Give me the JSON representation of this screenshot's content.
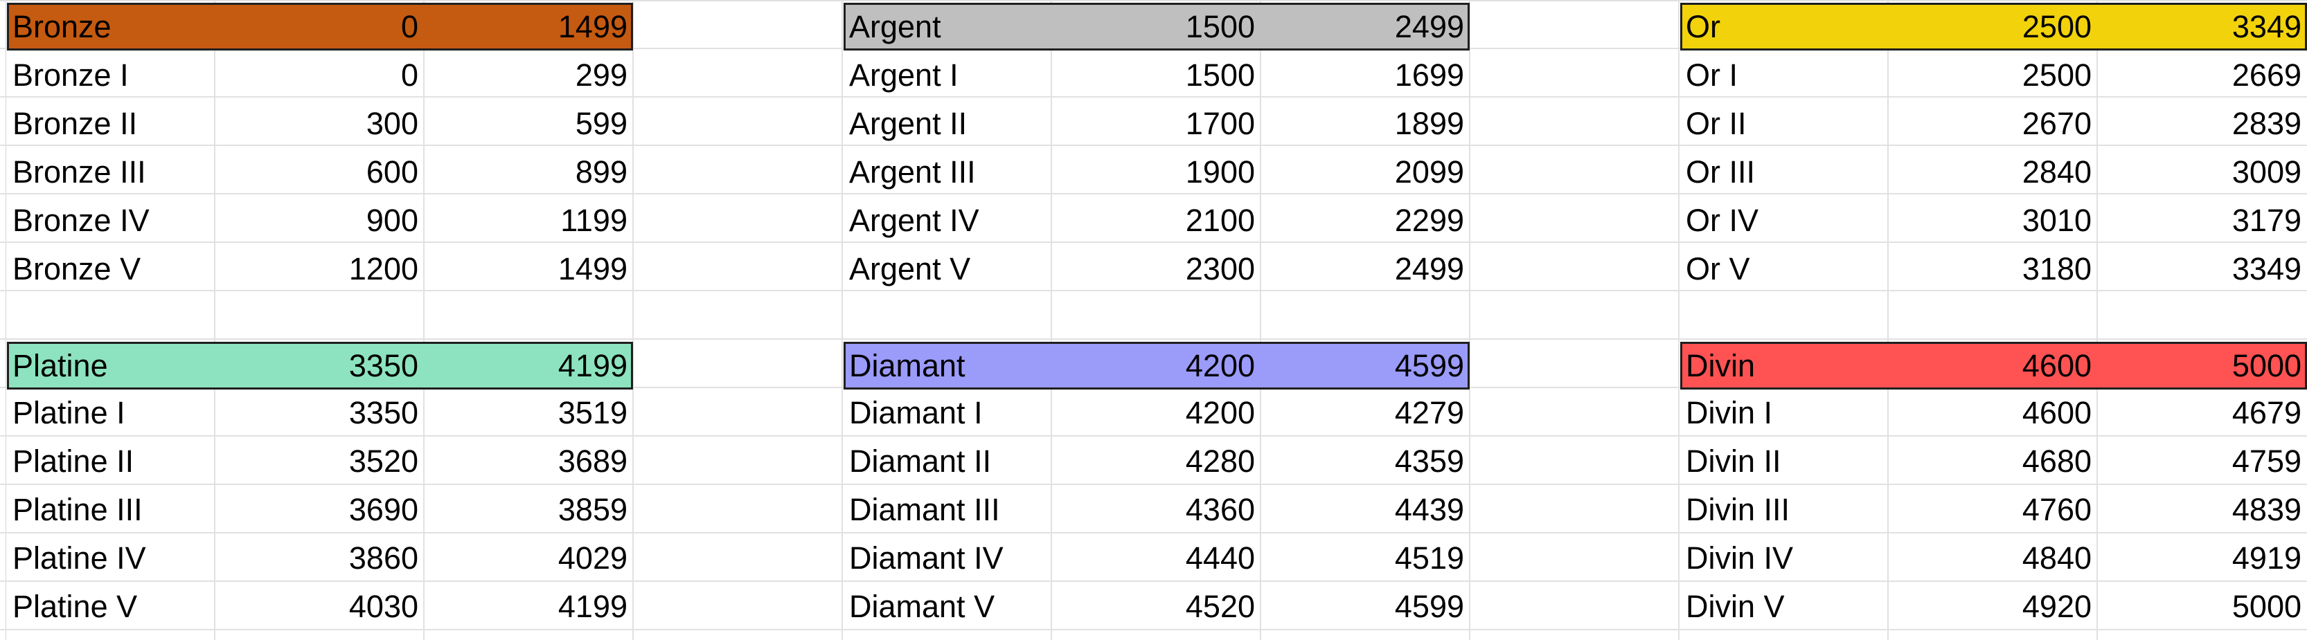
{
  "tiers": [
    {
      "name": "Bronze",
      "min": "0",
      "max": "1499",
      "color": "#c55a11",
      "divisions": [
        {
          "name": "Bronze I",
          "min": "0",
          "max": "299"
        },
        {
          "name": "Bronze II",
          "min": "300",
          "max": "599"
        },
        {
          "name": "Bronze III",
          "min": "600",
          "max": "899"
        },
        {
          "name": "Bronze IV",
          "min": "900",
          "max": "1199"
        },
        {
          "name": "Bronze V",
          "min": "1200",
          "max": "1499"
        }
      ]
    },
    {
      "name": "Argent",
      "min": "1500",
      "max": "2499",
      "color": "#bfbfbf",
      "divisions": [
        {
          "name": "Argent I",
          "min": "1500",
          "max": "1699"
        },
        {
          "name": "Argent II",
          "min": "1700",
          "max": "1899"
        },
        {
          "name": "Argent III",
          "min": "1900",
          "max": "2099"
        },
        {
          "name": "Argent IV",
          "min": "2100",
          "max": "2299"
        },
        {
          "name": "Argent V",
          "min": "2300",
          "max": "2499"
        }
      ]
    },
    {
      "name": "Or",
      "min": "2500",
      "max": "3349",
      "color": "#f2d20a",
      "divisions": [
        {
          "name": "Or I",
          "min": "2500",
          "max": "2669"
        },
        {
          "name": "Or II",
          "min": "2670",
          "max": "2839"
        },
        {
          "name": "Or III",
          "min": "2840",
          "max": "3009"
        },
        {
          "name": "Or IV",
          "min": "3010",
          "max": "3179"
        },
        {
          "name": "Or V",
          "min": "3180",
          "max": "3349"
        }
      ]
    },
    {
      "name": "Platine",
      "min": "3350",
      "max": "4199",
      "color": "#8de3bf",
      "divisions": [
        {
          "name": "Platine I",
          "min": "3350",
          "max": "3519"
        },
        {
          "name": "Platine II",
          "min": "3520",
          "max": "3689"
        },
        {
          "name": "Platine III",
          "min": "3690",
          "max": "3859"
        },
        {
          "name": "Platine IV",
          "min": "3860",
          "max": "4029"
        },
        {
          "name": "Platine V",
          "min": "4030",
          "max": "4199"
        }
      ]
    },
    {
      "name": "Diamant",
      "min": "4200",
      "max": "4599",
      "color": "#9b9bfa",
      "divisions": [
        {
          "name": "Diamant I",
          "min": "4200",
          "max": "4279"
        },
        {
          "name": "Diamant II",
          "min": "4280",
          "max": "4359"
        },
        {
          "name": "Diamant III",
          "min": "4360",
          "max": "4439"
        },
        {
          "name": "Diamant IV",
          "min": "4440",
          "max": "4519"
        },
        {
          "name": "Diamant V",
          "min": "4520",
          "max": "4599"
        }
      ]
    },
    {
      "name": "Divin",
      "min": "4600",
      "max": "5000",
      "color": "#ff5252",
      "divisions": [
        {
          "name": "Divin I",
          "min": "4600",
          "max": "4679"
        },
        {
          "name": "Divin II",
          "min": "4680",
          "max": "4759"
        },
        {
          "name": "Divin III",
          "min": "4760",
          "max": "4839"
        },
        {
          "name": "Divin IV",
          "min": "4840",
          "max": "4919"
        },
        {
          "name": "Divin V",
          "min": "4920",
          "max": "5000"
        }
      ]
    }
  ]
}
